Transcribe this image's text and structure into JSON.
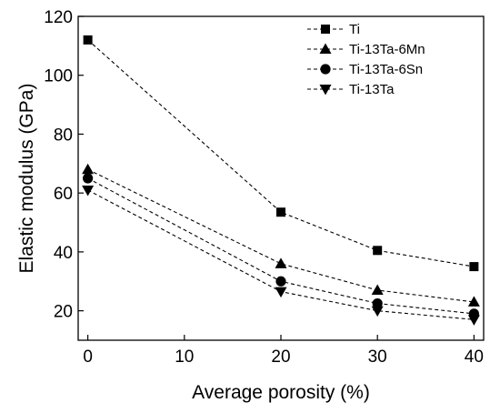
{
  "chart_data": {
    "type": "line",
    "xlabel": "Average porosity (%)",
    "ylabel": "Elastic modulus (GPa)",
    "xlim": [
      -1,
      41
    ],
    "ylim": [
      10,
      120
    ],
    "xticks": [
      0,
      10,
      20,
      30,
      40
    ],
    "yticks": [
      20,
      40,
      60,
      80,
      100,
      120
    ],
    "x": [
      0,
      20,
      30,
      40
    ],
    "grid": false,
    "legend_position": "top-right",
    "line_style": "dashed",
    "line_color": "#000000",
    "series": [
      {
        "name": "Ti",
        "marker": "square",
        "values": [
          112,
          53.5,
          40.5,
          35
        ]
      },
      {
        "name": "Ti-13Ta-6Mn",
        "marker": "triangle-up",
        "values": [
          68,
          36,
          27,
          23
        ]
      },
      {
        "name": "Ti-13Ta-6Sn",
        "marker": "circle",
        "values": [
          65,
          30,
          22.5,
          19
        ]
      },
      {
        "name": "Ti-13Ta",
        "marker": "triangle-down",
        "values": [
          61,
          26.5,
          20,
          17
        ]
      }
    ]
  }
}
